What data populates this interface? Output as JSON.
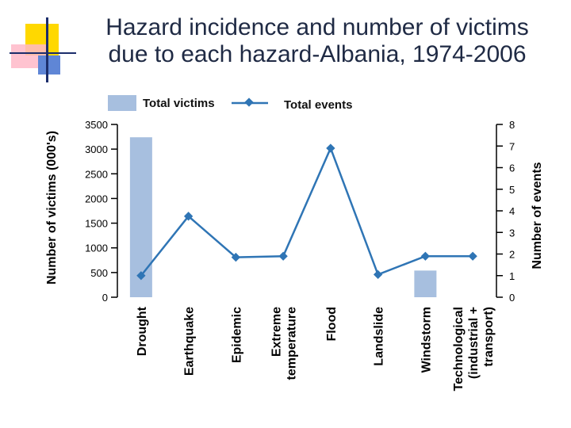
{
  "chart_data": {
    "type": "bar+line",
    "title_line1": "Hazard incidence and number of victims",
    "title_line2": "due to each hazard-Albania, 1974-2006",
    "categories": [
      "Drought",
      "Earthquake",
      "Epidemic",
      "Extreme temperature",
      "Flood",
      "Landslide",
      "Windstorm",
      "Technological (industrial + transport)"
    ],
    "category_lines": [
      [
        "Drought"
      ],
      [
        "Earthquake"
      ],
      [
        "Epidemic"
      ],
      [
        "Extreme",
        "temperature"
      ],
      [
        "Flood"
      ],
      [
        "Landslide"
      ],
      [
        "Windstorm"
      ],
      [
        "Technological",
        "(industrial +",
        "transport)"
      ]
    ],
    "series": [
      {
        "name": "Total victims",
        "axis": "left",
        "kind": "bar",
        "color": "#a7bfdf",
        "values": [
          3240,
          0,
          0,
          0,
          0,
          0,
          540,
          0
        ]
      },
      {
        "name": "Total events",
        "axis": "right",
        "kind": "line",
        "color": "#2f75b5",
        "values": [
          1,
          3.75,
          1.85,
          1.9,
          6.9,
          1.05,
          1.9,
          1.9
        ]
      }
    ],
    "ylabel_left": "Number of victims (000's)",
    "ylabel_right": "Number of events",
    "ylim_left": [
      0,
      3500
    ],
    "ylim_right": [
      0,
      8
    ],
    "yticks_left": [
      "0",
      "500",
      "1000",
      "1500",
      "2000",
      "2500",
      "3000",
      "3500"
    ],
    "yticks_right": [
      "0",
      "1",
      "2",
      "3",
      "4",
      "5",
      "6",
      "7",
      "8"
    ],
    "legend_position": "top",
    "grid": false
  }
}
